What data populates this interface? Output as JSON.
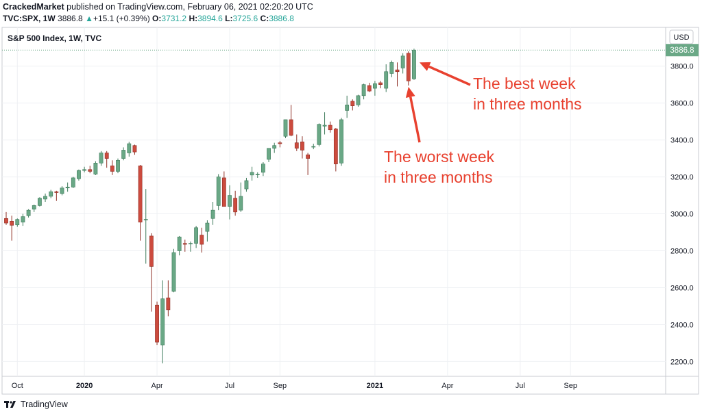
{
  "header": {
    "author": "CrackedMarket",
    "published_text": "published on TradingView.com, February 06, 2021 02:20:20 UTC",
    "symbol": "TVC:SPX, 1W",
    "last_price": "3886.8",
    "change_arrow": "▲",
    "change": "+15.1 (+0.39%)",
    "open_label": "O:",
    "open": "3731.2",
    "high_label": "H:",
    "high": "3894.6",
    "low_label": "L:",
    "low": "3725.6",
    "close_label": "C:",
    "close": "3886.8"
  },
  "currency_label": "USD",
  "footer": {
    "brand": "TradingView"
  },
  "colors": {
    "up": "#6aa886",
    "up_border": "#3d7a5a",
    "down": "#cc4b3e",
    "down_border": "#8e2f25",
    "annotation": "#e8412f",
    "price_tag": "#6aa886"
  },
  "chart_data": {
    "type": "candlestick",
    "title": "S&P 500 Index, 1W, TVC",
    "current_price_label": "3886.8",
    "ylim": [
      2120,
      4010
    ],
    "y_ticks": [
      2200,
      2400,
      2600,
      2800,
      3000,
      3200,
      3400,
      3600,
      3800
    ],
    "y_tick_labels": [
      "2200.0",
      "2400.0",
      "2600.0",
      "2800.0",
      "3000.0",
      "3200.0",
      "3400.0",
      "3600.0",
      "3800.0"
    ],
    "x_labels": [
      {
        "label": "Oct",
        "week_index": 2,
        "bold": false
      },
      {
        "label": "2020",
        "week_index": 14,
        "bold": true
      },
      {
        "label": "Apr",
        "week_index": 27,
        "bold": false
      },
      {
        "label": "Jul",
        "week_index": 40,
        "bold": false
      },
      {
        "label": "Sep",
        "week_index": 49,
        "bold": false
      },
      {
        "label": "2021",
        "week_index": 66,
        "bold": true
      },
      {
        "label": "Apr",
        "week_index": 79,
        "bold": false
      },
      {
        "label": "Jul",
        "week_index": 92,
        "bold": false
      },
      {
        "label": "Sep",
        "week_index": 101,
        "bold": false
      }
    ],
    "grid": true,
    "candles": [
      {
        "o": 2975,
        "h": 3010,
        "l": 2940,
        "c": 2950
      },
      {
        "o": 2960,
        "h": 2990,
        "l": 2855,
        "c": 2938
      },
      {
        "o": 2940,
        "h": 2975,
        "l": 2930,
        "c": 2970
      },
      {
        "o": 2955,
        "h": 3000,
        "l": 2935,
        "c": 2985
      },
      {
        "o": 2990,
        "h": 3025,
        "l": 2980,
        "c": 3020
      },
      {
        "o": 3025,
        "h": 3050,
        "l": 3010,
        "c": 3045
      },
      {
        "o": 3045,
        "h": 3090,
        "l": 3040,
        "c": 3085
      },
      {
        "o": 3080,
        "h": 3110,
        "l": 3065,
        "c": 3095
      },
      {
        "o": 3095,
        "h": 3130,
        "l": 3085,
        "c": 3120
      },
      {
        "o": 3120,
        "h": 3125,
        "l": 3070,
        "c": 3115
      },
      {
        "o": 3110,
        "h": 3150,
        "l": 3100,
        "c": 3140
      },
      {
        "o": 3140,
        "h": 3170,
        "l": 3120,
        "c": 3145
      },
      {
        "o": 3145,
        "h": 3200,
        "l": 3140,
        "c": 3195
      },
      {
        "o": 3190,
        "h": 3240,
        "l": 3180,
        "c": 3235
      },
      {
        "o": 3235,
        "h": 3255,
        "l": 3225,
        "c": 3240
      },
      {
        "o": 3240,
        "h": 3260,
        "l": 3220,
        "c": 3230
      },
      {
        "o": 3215,
        "h": 3285,
        "l": 3210,
        "c": 3275
      },
      {
        "o": 3275,
        "h": 3340,
        "l": 3260,
        "c": 3330
      },
      {
        "o": 3330,
        "h": 3340,
        "l": 3250,
        "c": 3300
      },
      {
        "o": 3260,
        "h": 3290,
        "l": 3210,
        "c": 3230
      },
      {
        "o": 3230,
        "h": 3300,
        "l": 3220,
        "c": 3290
      },
      {
        "o": 3300,
        "h": 3360,
        "l": 3290,
        "c": 3345
      },
      {
        "o": 3330,
        "h": 3390,
        "l": 3310,
        "c": 3380
      },
      {
        "o": 3370,
        "h": 3375,
        "l": 3320,
        "c": 3335
      },
      {
        "o": 3260,
        "h": 3265,
        "l": 2855,
        "c": 2955
      },
      {
        "o": 2970,
        "h": 3135,
        "l": 2730,
        "c": 2970
      },
      {
        "o": 2880,
        "h": 2895,
        "l": 2470,
        "c": 2715
      },
      {
        "o": 2505,
        "h": 2525,
        "l": 2290,
        "c": 2305
      },
      {
        "o": 2290,
        "h": 2640,
        "l": 2190,
        "c": 2540
      },
      {
        "o": 2545,
        "h": 2640,
        "l": 2445,
        "c": 2480
      },
      {
        "o": 2580,
        "h": 2810,
        "l": 2575,
        "c": 2790
      },
      {
        "o": 2800,
        "h": 2880,
        "l": 2775,
        "c": 2875
      },
      {
        "o": 2840,
        "h": 2860,
        "l": 2795,
        "c": 2835
      },
      {
        "o": 2840,
        "h": 2850,
        "l": 2795,
        "c": 2840
      },
      {
        "o": 2840,
        "h": 2935,
        "l": 2815,
        "c": 2925
      },
      {
        "o": 2885,
        "h": 2925,
        "l": 2790,
        "c": 2835
      },
      {
        "o": 2905,
        "h": 2965,
        "l": 2850,
        "c": 2950
      },
      {
        "o": 2975,
        "h": 3065,
        "l": 2940,
        "c": 3020
      },
      {
        "o": 3045,
        "h": 3215,
        "l": 3020,
        "c": 3200
      },
      {
        "o": 3195,
        "h": 3230,
        "l": 3040,
        "c": 3040
      },
      {
        "o": 3040,
        "h": 3155,
        "l": 2970,
        "c": 3100
      },
      {
        "o": 3085,
        "h": 3125,
        "l": 2990,
        "c": 3010
      },
      {
        "o": 3020,
        "h": 3170,
        "l": 3010,
        "c": 3095
      },
      {
        "o": 3135,
        "h": 3195,
        "l": 3120,
        "c": 3180
      },
      {
        "o": 3210,
        "h": 3255,
        "l": 3180,
        "c": 3225
      },
      {
        "o": 3215,
        "h": 3225,
        "l": 3195,
        "c": 3215
      },
      {
        "o": 3225,
        "h": 3280,
        "l": 3205,
        "c": 3270
      },
      {
        "o": 3295,
        "h": 3355,
        "l": 3280,
        "c": 3355
      },
      {
        "o": 3355,
        "h": 3385,
        "l": 3330,
        "c": 3370
      },
      {
        "o": 3385,
        "h": 3395,
        "l": 3360,
        "c": 3380
      },
      {
        "o": 3420,
        "h": 3510,
        "l": 3410,
        "c": 3510
      },
      {
        "o": 3510,
        "h": 3590,
        "l": 3420,
        "c": 3425
      },
      {
        "o": 3385,
        "h": 3430,
        "l": 3340,
        "c": 3355
      },
      {
        "o": 3390,
        "h": 3420,
        "l": 3300,
        "c": 3345
      },
      {
        "o": 3320,
        "h": 3330,
        "l": 3210,
        "c": 3300
      },
      {
        "o": 3365,
        "h": 3380,
        "l": 3350,
        "c": 3365
      },
      {
        "o": 3375,
        "h": 3490,
        "l": 3365,
        "c": 3485
      },
      {
        "o": 3475,
        "h": 3550,
        "l": 3430,
        "c": 3480
      },
      {
        "o": 3480,
        "h": 3500,
        "l": 3440,
        "c": 3455
      },
      {
        "o": 3460,
        "h": 3465,
        "l": 3230,
        "c": 3270
      },
      {
        "o": 3275,
        "h": 3520,
        "l": 3260,
        "c": 3510
      },
      {
        "o": 3560,
        "h": 3640,
        "l": 3520,
        "c": 3590
      },
      {
        "o": 3610,
        "h": 3620,
        "l": 3560,
        "c": 3585
      },
      {
        "o": 3590,
        "h": 3645,
        "l": 3580,
        "c": 3640
      },
      {
        "o": 3640,
        "h": 3705,
        "l": 3620,
        "c": 3700
      },
      {
        "o": 3695,
        "h": 3710,
        "l": 3660,
        "c": 3665
      },
      {
        "o": 3680,
        "h": 3720,
        "l": 3640,
        "c": 3705
      },
      {
        "o": 3710,
        "h": 3720,
        "l": 3680,
        "c": 3700
      },
      {
        "o": 3680,
        "h": 3810,
        "l": 3660,
        "c": 3770
      },
      {
        "o": 3760,
        "h": 3830,
        "l": 3740,
        "c": 3820
      },
      {
        "o": 3780,
        "h": 3820,
        "l": 3690,
        "c": 3770
      },
      {
        "o": 3790,
        "h": 3870,
        "l": 3760,
        "c": 3855
      },
      {
        "o": 3870,
        "h": 3880,
        "l": 3695,
        "c": 3720
      },
      {
        "o": 3731.2,
        "h": 3894.6,
        "l": 3725.6,
        "c": 3886.8
      }
    ],
    "annotations": [
      {
        "text_lines": [
          "The best week",
          "in three months"
        ],
        "target_week_index": 73,
        "target_price": 3820
      },
      {
        "text_lines": [
          "The worst week",
          "in three months"
        ],
        "target_week_index": 72,
        "target_price": 3710
      }
    ]
  }
}
